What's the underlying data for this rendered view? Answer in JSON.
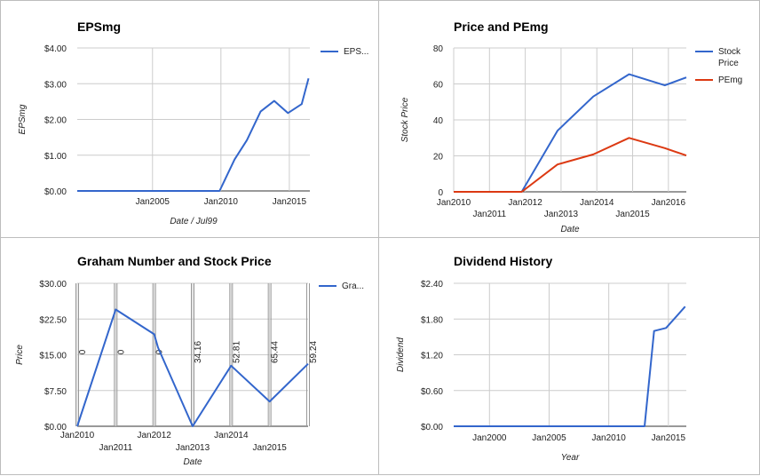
{
  "chart_data": [
    {
      "id": "eps",
      "type": "line",
      "title": "EPSmg",
      "xlabel": "Date / Jul99",
      "ylabel": "EPSmg",
      "xlim": [
        1999.5,
        2016.5
      ],
      "ylim": [
        0,
        4
      ],
      "x_ticks": [
        {
          "v": 2005,
          "label": "Jan2005"
        },
        {
          "v": 2010,
          "label": "Jan2010"
        },
        {
          "v": 2015,
          "label": "Jan2015"
        }
      ],
      "y_ticks": [
        {
          "v": 0,
          "label": "$0.00"
        },
        {
          "v": 1,
          "label": "$1.00"
        },
        {
          "v": 2,
          "label": "$2.00"
        },
        {
          "v": 3,
          "label": "$3.00"
        },
        {
          "v": 4,
          "label": "$4.00"
        }
      ],
      "legend": "right",
      "series": [
        {
          "name": "EPS...",
          "color": "#3366cc",
          "x": [
            1999.5,
            2009.9,
            2011.0,
            2011.9,
            2012.9,
            2013.9,
            2014.9,
            2015.9,
            2016.4
          ],
          "y": [
            0,
            0,
            0.88,
            1.42,
            2.22,
            2.52,
            2.18,
            2.43,
            3.15
          ]
        }
      ]
    },
    {
      "id": "price",
      "type": "line",
      "title": "Price and PEmg",
      "xlabel": "Date",
      "ylabel": "Stock Price",
      "xlim": [
        2010,
        2016.5
      ],
      "ylim": [
        0,
        80
      ],
      "x_ticks": [
        {
          "v": 2010,
          "label": "Jan2010",
          "row": 0
        },
        {
          "v": 2011,
          "label": "Jan2011",
          "row": 1
        },
        {
          "v": 2012,
          "label": "Jan2012",
          "row": 0
        },
        {
          "v": 2013,
          "label": "Jan2013",
          "row": 1
        },
        {
          "v": 2014,
          "label": "Jan2014",
          "row": 0
        },
        {
          "v": 2015,
          "label": "Jan2015",
          "row": 1
        },
        {
          "v": 2016,
          "label": "Jan2016",
          "row": 0
        }
      ],
      "y_ticks": [
        {
          "v": 0,
          "label": "0"
        },
        {
          "v": 20,
          "label": "20"
        },
        {
          "v": 40,
          "label": "40"
        },
        {
          "v": 60,
          "label": "60"
        },
        {
          "v": 80,
          "label": "80"
        }
      ],
      "legend": "right",
      "series": [
        {
          "name": "Stock Price",
          "name_lines": [
            "Stock",
            "Price"
          ],
          "color": "#3366cc",
          "x": [
            2010,
            2011,
            2011.9,
            2012.9,
            2013.9,
            2014.9,
            2015.9,
            2016.5
          ],
          "y": [
            0,
            0,
            0,
            34,
            53,
            65.4,
            59.2,
            63.6
          ]
        },
        {
          "name": "PEmg",
          "name_lines": [
            "PEmg"
          ],
          "color": "#dc3912",
          "x": [
            2010,
            2011,
            2011.9,
            2012.9,
            2013.9,
            2014.9,
            2015.9,
            2016.5
          ],
          "y": [
            0,
            0,
            0,
            15.2,
            20.8,
            30,
            24.3,
            20.2
          ]
        }
      ]
    },
    {
      "id": "graham",
      "type": "line",
      "title": "Graham Number and Stock Price",
      "xlabel": "Date",
      "ylabel": "Price",
      "xlim": [
        2009.9,
        2015.9
      ],
      "ylim": [
        0,
        30
      ],
      "x_ticks": [
        {
          "v": 2009.9,
          "label": "Jan2010",
          "row": 0
        },
        {
          "v": 2010.9,
          "label": "Jan2011",
          "row": 1
        },
        {
          "v": 2011.9,
          "label": "Jan2012",
          "row": 0
        },
        {
          "v": 2012.9,
          "label": "Jan2013",
          "row": 1
        },
        {
          "v": 2013.9,
          "label": "Jan2014",
          "row": 0
        },
        {
          "v": 2014.9,
          "label": "Jan2015",
          "row": 1
        }
      ],
      "y_ticks": [
        {
          "v": 0,
          "label": "$0.00"
        },
        {
          "v": 7.5,
          "label": "$7.50"
        },
        {
          "v": 15,
          "label": "$15.00"
        },
        {
          "v": 22.5,
          "label": "$22.50"
        },
        {
          "v": 30,
          "label": "$30.00"
        }
      ],
      "legend": "right",
      "annotations": [
        {
          "x": 2009.9,
          "label": "0"
        },
        {
          "x": 2010.9,
          "label": "0"
        },
        {
          "x": 2011.9,
          "label": "0"
        },
        {
          "x": 2012.9,
          "label": "34.16"
        },
        {
          "x": 2013.9,
          "label": "52.81"
        },
        {
          "x": 2014.9,
          "label": "65.44"
        },
        {
          "x": 2015.9,
          "label": "59.24"
        }
      ],
      "series": [
        {
          "name": "Gra...",
          "color": "#3366cc",
          "x": [
            2009.9,
            2010.9,
            2011.9,
            2012.0,
            2012.9,
            2013.9,
            2014.9,
            2015.9
          ],
          "y": [
            0,
            24.5,
            19.3,
            16.5,
            0,
            12.7,
            5.2,
            13.1
          ]
        }
      ]
    },
    {
      "id": "dividend",
      "type": "line",
      "title": "Dividend History",
      "xlabel": "Year",
      "ylabel": "Dividend",
      "xlim": [
        1997,
        2016.5
      ],
      "ylim": [
        0,
        2.4
      ],
      "x_ticks": [
        {
          "v": 2000,
          "label": "Jan2000"
        },
        {
          "v": 2005,
          "label": "Jan2005"
        },
        {
          "v": 2010,
          "label": "Jan2010"
        },
        {
          "v": 2015,
          "label": "Jan2015"
        }
      ],
      "y_ticks": [
        {
          "v": 0,
          "label": "$0.00"
        },
        {
          "v": 0.6,
          "label": "$0.60"
        },
        {
          "v": 1.2,
          "label": "$1.20"
        },
        {
          "v": 1.8,
          "label": "$1.80"
        },
        {
          "v": 2.4,
          "label": "$2.40"
        }
      ],
      "legend": "none",
      "series": [
        {
          "name": "",
          "color": "#3366cc",
          "x": [
            1997,
            2013.0,
            2013.8,
            2014.8,
            2016.4
          ],
          "y": [
            0,
            0,
            1.6,
            1.65,
            2.01
          ]
        }
      ]
    }
  ]
}
